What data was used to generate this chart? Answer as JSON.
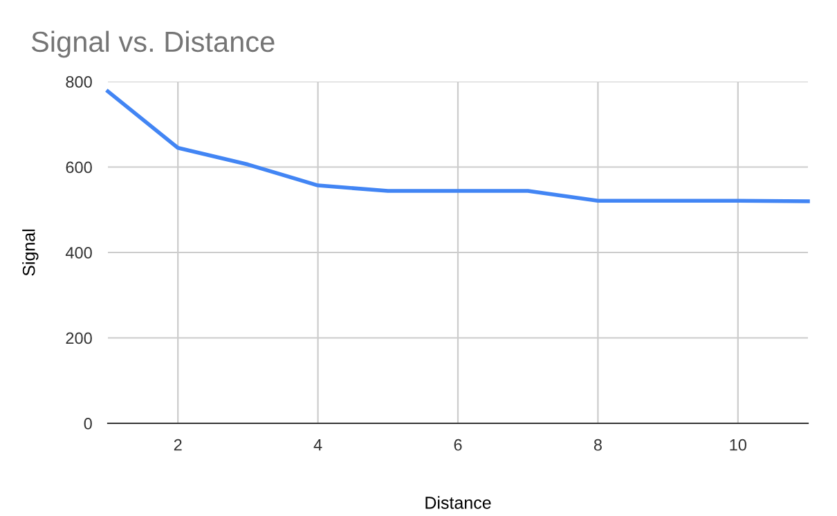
{
  "chart_data": {
    "type": "line",
    "title": "Signal vs. Distance",
    "xlabel": "Distance",
    "ylabel": "Signal",
    "x": [
      1,
      2,
      3,
      4,
      5,
      6,
      7,
      8,
      9,
      10,
      11
    ],
    "series": [
      {
        "color": "#4285f4",
        "values": [
          777,
          645,
          606,
          557,
          544,
          544,
          544,
          521,
          521,
          521,
          520
        ]
      }
    ],
    "xlim": [
      1,
      11
    ],
    "xticks": [
      2,
      4,
      6,
      8,
      10
    ],
    "ylim": [
      0,
      800
    ],
    "yticks": [
      0,
      200,
      400,
      600,
      800
    ],
    "grid": true,
    "marker": "none",
    "line_style": "solid"
  }
}
